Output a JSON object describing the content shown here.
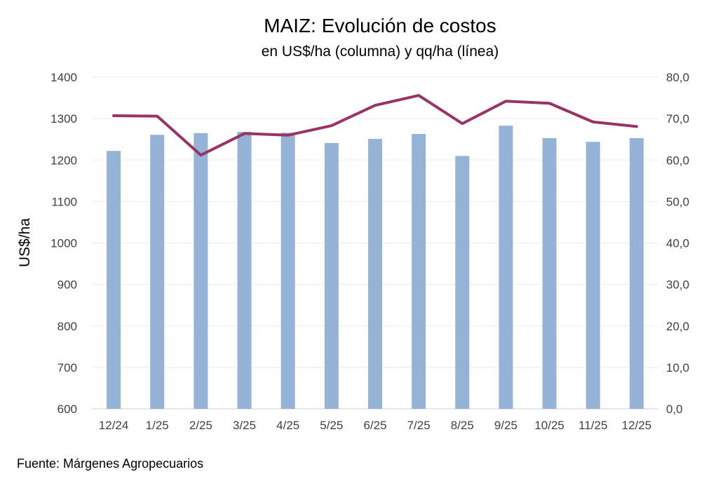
{
  "chart_data": {
    "type": "bar+line",
    "title": "MAIZ: Evolución de costos",
    "subtitle": "en US$/ha (columna) y qq/ha (línea)",
    "ylabel": "US$/ha",
    "ylabel_right": "",
    "xlabel": "",
    "categories": [
      "12/24",
      "1/25",
      "2/25",
      "3/25",
      "4/25",
      "5/25",
      "6/25",
      "7/25",
      "8/25",
      "9/25",
      "10/25",
      "11/25",
      "12/25"
    ],
    "series": [
      {
        "name": "US$/ha",
        "type": "bar",
        "axis": "left",
        "color": "#95b3d7",
        "values": [
          1222,
          1261,
          1265,
          1268,
          1266,
          1241,
          1251,
          1263,
          1210,
          1283,
          1253,
          1244,
          1253
        ]
      },
      {
        "name": "qq/ha",
        "type": "line",
        "axis": "right",
        "color": "#993366",
        "values": [
          70.7,
          70.6,
          61.2,
          66.4,
          66.0,
          68.3,
          73.2,
          75.6,
          68.8,
          74.2,
          73.7,
          69.2,
          68.1
        ]
      }
    ],
    "ylim": [
      600,
      1400
    ],
    "ylim_right": [
      0,
      80
    ],
    "yticks": [
      "600",
      "700",
      "800",
      "900",
      "1000",
      "1100",
      "1200",
      "1300",
      "1400"
    ],
    "yticks_right": [
      "0,0",
      "10,0",
      "20,0",
      "30,0",
      "40,0",
      "50,0",
      "60,0",
      "70,0",
      "80,0"
    ],
    "grid": true,
    "legend": "none"
  },
  "source": "Fuente: Márgenes Agropecuarios"
}
